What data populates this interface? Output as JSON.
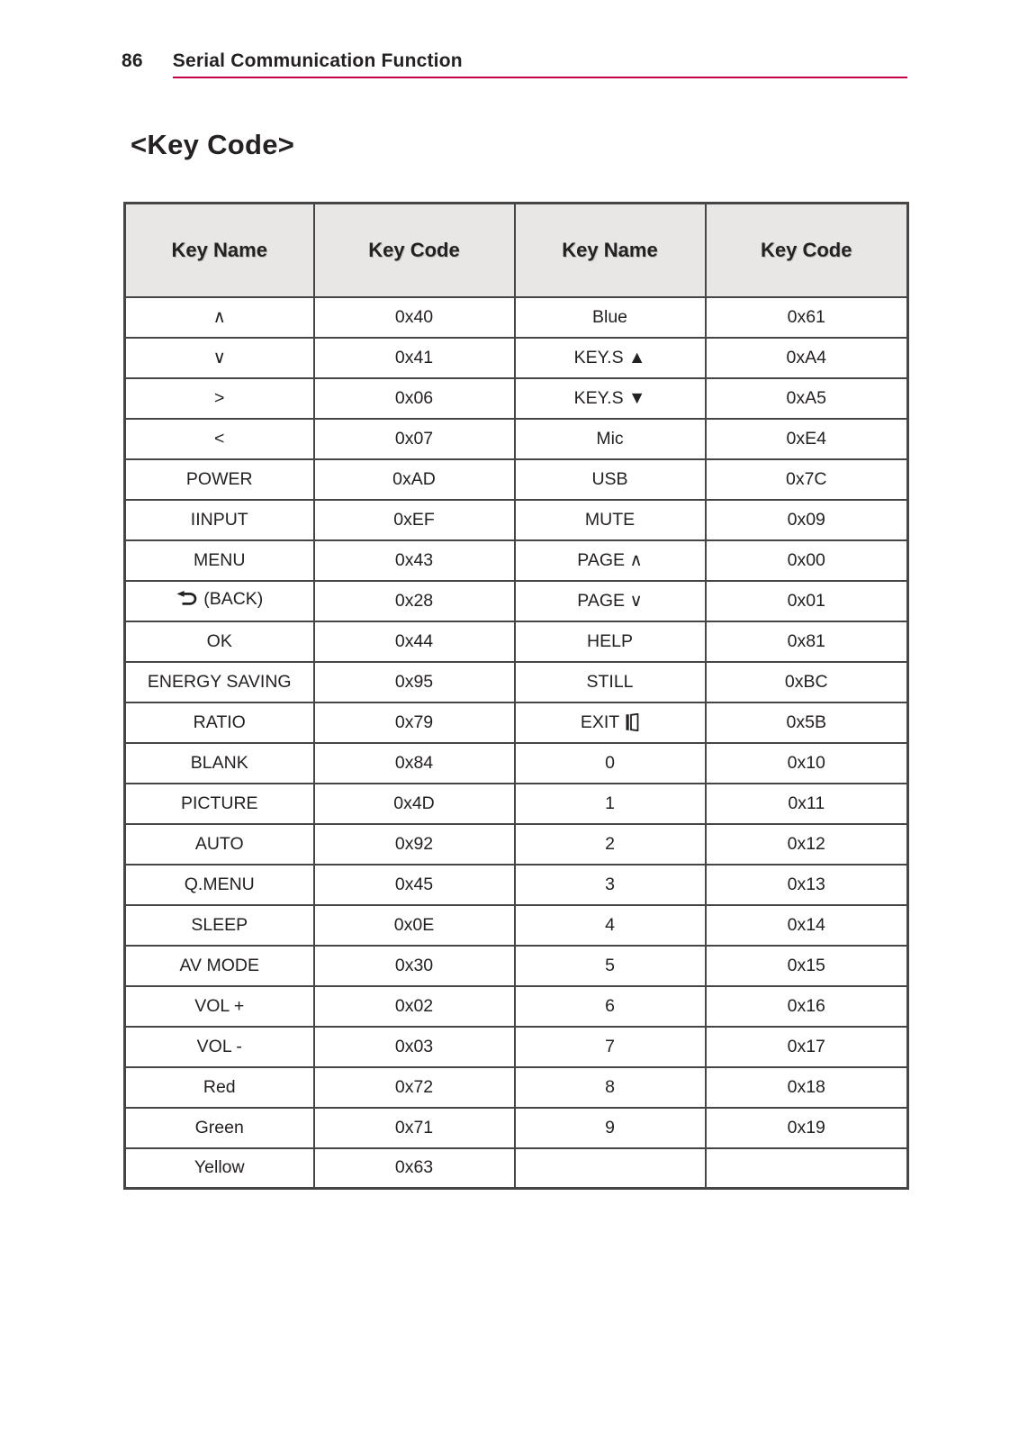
{
  "page": {
    "number": "86",
    "running_title": "Serial Communication Function",
    "section_title": "<Key Code>"
  },
  "colors": {
    "accent_line": "#c4004f",
    "table_header_bg": "#e8e7e5",
    "table_border": "#454545",
    "text": "#252122"
  },
  "icons": {
    "back": "back-arrow-icon",
    "exit": "exit-door-icon"
  },
  "table": {
    "headers": [
      "Key Name",
      "Key Code",
      "Key Name",
      "Key Code"
    ],
    "rows": [
      {
        "cells": [
          {
            "text": "∧"
          },
          {
            "text": "0x40"
          },
          {
            "text": "Blue"
          },
          {
            "text": "0x61"
          }
        ]
      },
      {
        "cells": [
          {
            "text": "∨"
          },
          {
            "text": "0x41"
          },
          {
            "text": "KEY.S ▲"
          },
          {
            "text": "0xA4"
          }
        ]
      },
      {
        "cells": [
          {
            "text": ">"
          },
          {
            "text": "0x06"
          },
          {
            "text": "KEY.S ▼"
          },
          {
            "text": "0xA5"
          }
        ]
      },
      {
        "cells": [
          {
            "text": "<"
          },
          {
            "text": "0x07"
          },
          {
            "text": "Mic"
          },
          {
            "text": "0xE4"
          }
        ]
      },
      {
        "cells": [
          {
            "text": "POWER"
          },
          {
            "text": "0xAD"
          },
          {
            "text": "USB"
          },
          {
            "text": "0x7C"
          }
        ]
      },
      {
        "cells": [
          {
            "text": "IINPUT"
          },
          {
            "text": "0xEF"
          },
          {
            "text": "MUTE"
          },
          {
            "text": "0x09"
          }
        ]
      },
      {
        "cells": [
          {
            "text": "MENU"
          },
          {
            "text": "0x43"
          },
          {
            "text": "PAGE ∧"
          },
          {
            "text": "0x00"
          }
        ]
      },
      {
        "cells": [
          {
            "text": "(BACK)",
            "icon": "back",
            "icon_pos": "before"
          },
          {
            "text": "0x28"
          },
          {
            "text": "PAGE ∨"
          },
          {
            "text": "0x01"
          }
        ]
      },
      {
        "cells": [
          {
            "text": "OK"
          },
          {
            "text": "0x44"
          },
          {
            "text": "HELP"
          },
          {
            "text": "0x81"
          }
        ]
      },
      {
        "cells": [
          {
            "text": "ENERGY SAVING"
          },
          {
            "text": "0x95"
          },
          {
            "text": "STILL"
          },
          {
            "text": "0xBC"
          }
        ]
      },
      {
        "cells": [
          {
            "text": "RATIO"
          },
          {
            "text": "0x79"
          },
          {
            "text": "EXIT",
            "icon": "exit",
            "icon_pos": "after"
          },
          {
            "text": "0x5B"
          }
        ]
      },
      {
        "cells": [
          {
            "text": "BLANK"
          },
          {
            "text": "0x84"
          },
          {
            "text": "0"
          },
          {
            "text": "0x10"
          }
        ]
      },
      {
        "cells": [
          {
            "text": "PICTURE"
          },
          {
            "text": "0x4D"
          },
          {
            "text": "1"
          },
          {
            "text": "0x11"
          }
        ]
      },
      {
        "cells": [
          {
            "text": "AUTO"
          },
          {
            "text": "0x92"
          },
          {
            "text": "2"
          },
          {
            "text": "0x12"
          }
        ]
      },
      {
        "cells": [
          {
            "text": "Q.MENU"
          },
          {
            "text": "0x45"
          },
          {
            "text": "3"
          },
          {
            "text": "0x13"
          }
        ]
      },
      {
        "cells": [
          {
            "text": "SLEEP"
          },
          {
            "text": "0x0E"
          },
          {
            "text": "4"
          },
          {
            "text": "0x14"
          }
        ]
      },
      {
        "cells": [
          {
            "text": "AV MODE"
          },
          {
            "text": "0x30"
          },
          {
            "text": "5"
          },
          {
            "text": "0x15"
          }
        ]
      },
      {
        "cells": [
          {
            "text": "VOL +"
          },
          {
            "text": "0x02"
          },
          {
            "text": "6"
          },
          {
            "text": "0x16"
          }
        ]
      },
      {
        "cells": [
          {
            "text": "VOL -"
          },
          {
            "text": "0x03"
          },
          {
            "text": "7"
          },
          {
            "text": "0x17"
          }
        ]
      },
      {
        "cells": [
          {
            "text": "Red"
          },
          {
            "text": "0x72"
          },
          {
            "text": "8"
          },
          {
            "text": "0x18"
          }
        ]
      },
      {
        "cells": [
          {
            "text": "Green"
          },
          {
            "text": "0x71"
          },
          {
            "text": "9"
          },
          {
            "text": "0x19"
          }
        ]
      },
      {
        "cells": [
          {
            "text": "Yellow"
          },
          {
            "text": "0x63"
          },
          {
            "text": ""
          },
          {
            "text": ""
          }
        ]
      }
    ]
  }
}
